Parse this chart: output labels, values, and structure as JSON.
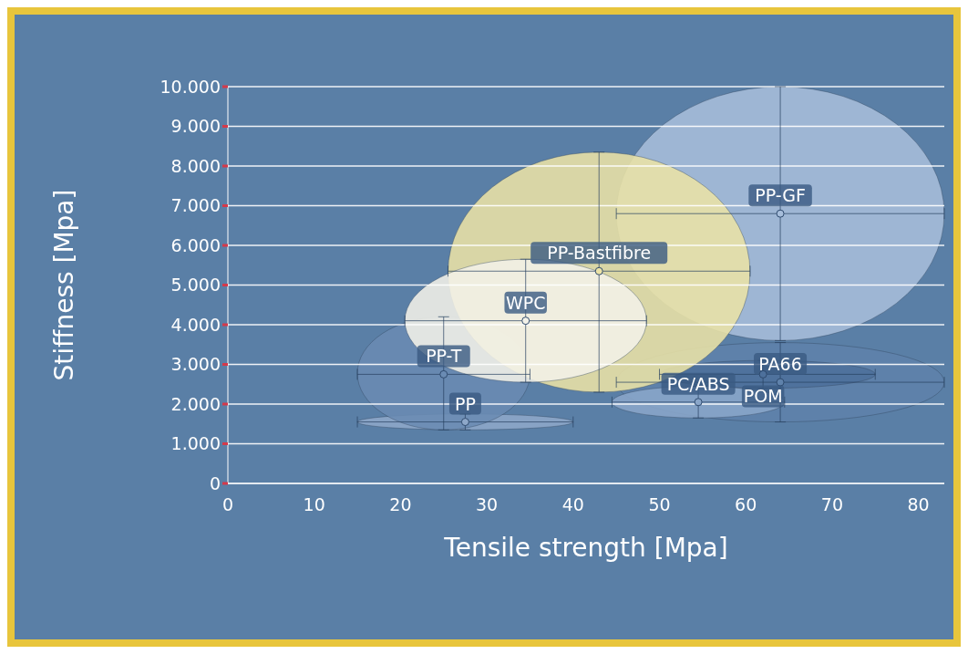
{
  "chart_data": {
    "type": "scatter",
    "xlabel": "Tensile strength [Mpa]",
    "ylabel": "Stiffness [Mpa]",
    "xlim": [
      0,
      83
    ],
    "xticks": [
      0,
      10,
      20,
      30,
      40,
      50,
      60,
      70,
      80
    ],
    "ylim": [
      0,
      10000
    ],
    "yticks": [
      {
        "value": 0,
        "label": "0"
      },
      {
        "value": 1000,
        "label": "1.000"
      },
      {
        "value": 2000,
        "label": "2.000"
      },
      {
        "value": 3000,
        "label": "3.000"
      },
      {
        "value": 4000,
        "label": "4.000"
      },
      {
        "value": 5000,
        "label": "5.000"
      },
      {
        "value": 6000,
        "label": "6.000"
      },
      {
        "value": 7000,
        "label": "7.000"
      },
      {
        "value": 8000,
        "label": "8.000"
      },
      {
        "value": 9000,
        "label": "9.000"
      },
      {
        "value": 10000,
        "label": "10.000"
      }
    ],
    "grid": "y",
    "marker": "circle",
    "series": [
      {
        "name": "PP-GF",
        "color": "#a7bedb",
        "x": [
          64
        ],
        "values": [
          6800
        ],
        "xerrors": [
          [
            45,
            83
          ]
        ],
        "errors": [
          [
            3600,
            10000
          ]
        ]
      },
      {
        "name": "PA66",
        "color": "#5f82ab",
        "x": [
          64
        ],
        "values": [
          2550
        ],
        "xerrors": [
          [
            45,
            83
          ]
        ],
        "errors": [
          [
            1550,
            3550
          ]
        ]
      },
      {
        "name": "POM",
        "color": "#4d709b",
        "x": [
          62
        ],
        "values": [
          2750
        ],
        "xerrors": [
          [
            50,
            75
          ]
        ],
        "errors": [
          [
            2400,
            3100
          ]
        ]
      },
      {
        "name": "PC/ABS",
        "color": "#8aa6c9",
        "x": [
          54.5
        ],
        "values": [
          2050
        ],
        "xerrors": [
          [
            44.5,
            64.5
          ]
        ],
        "errors": [
          [
            1650,
            2450
          ]
        ]
      },
      {
        "name": "PP",
        "color": "#8ea8c9",
        "x": [
          27.5
        ],
        "values": [
          1550
        ],
        "xerrors": [
          [
            15,
            40
          ]
        ],
        "errors": [
          [
            1350,
            1750
          ]
        ]
      },
      {
        "name": "PP-T",
        "color": "#6a8bb3",
        "x": [
          25
        ],
        "values": [
          2750
        ],
        "xerrors": [
          [
            15,
            35
          ]
        ],
        "errors": [
          [
            1350,
            4200
          ]
        ]
      },
      {
        "name": "PP-Bastfibre",
        "color": "#ebe2a6",
        "x": [
          43
        ],
        "values": [
          5350
        ],
        "xerrors": [
          [
            25.5,
            60.5
          ]
        ],
        "errors": [
          [
            2300,
            8350
          ]
        ]
      },
      {
        "name": "WPC",
        "color": "#f2f1e8",
        "x": [
          34.5
        ],
        "values": [
          4100
        ],
        "xerrors": [
          [
            20.5,
            48.5
          ]
        ],
        "errors": [
          [
            2550,
            5650
          ]
        ]
      }
    ]
  }
}
